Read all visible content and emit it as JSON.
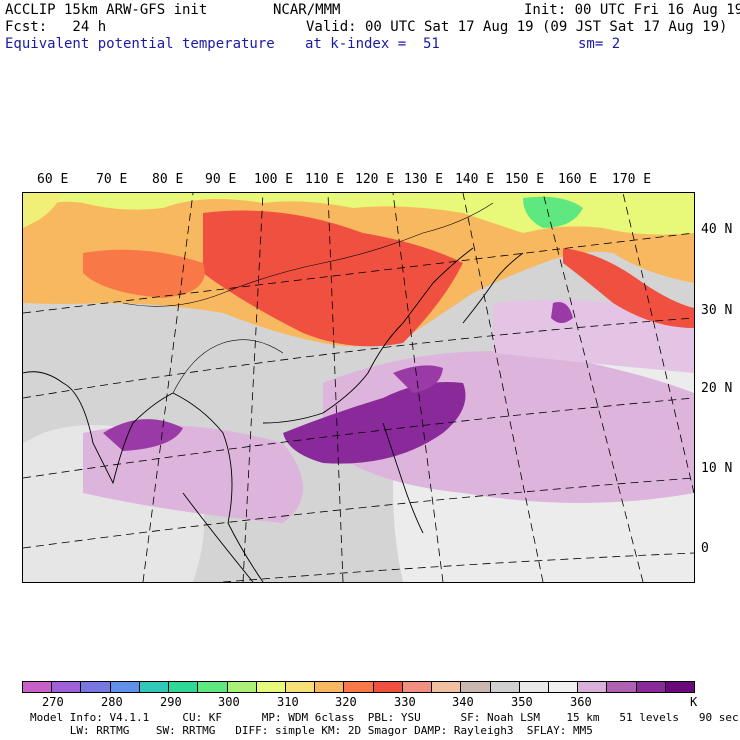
{
  "header": {
    "left_line1": "ACCLIP 15km ARW-GFS init",
    "left_line2": "Fcst:   24 h",
    "field": "Equivalent potential temperature",
    "center_org": "NCAR/MMM",
    "init": "Init: 00 UTC Fri 16 Aug 19",
    "valid": "Valid: 00 UTC Sat 17 Aug 19 (09 JST Sat 17 Aug 19)",
    "level": "at k-index =  51",
    "smooth": "sm= 2"
  },
  "map": {
    "lon_labels": [
      "60 E",
      "70 E",
      "80 E",
      "90 E",
      "100 E",
      "110 E",
      "120 E",
      "130 E",
      "140 E",
      "150 E",
      "160 E",
      "170 E"
    ],
    "lat_labels": [
      "40 N",
      "30 N",
      "20 N",
      "10 N",
      "0"
    ]
  },
  "colorbar": {
    "colors": [
      "#c860c8",
      "#a060d8",
      "#7878e0",
      "#6090e8",
      "#30c8b8",
      "#30d898",
      "#60e880",
      "#a8f078",
      "#e8f878",
      "#f8e078",
      "#f8b860",
      "#f87848",
      "#f05040",
      "#f09080",
      "#f0c0a0",
      "#c8b8b0",
      "#d0d0d0",
      "#e8e8e8",
      "#f0f0f0",
      "#d8b0d8",
      "#b060b0",
      "#8a2a9a",
      "#6a0a7a"
    ],
    "tick_labels": [
      "270",
      "280",
      "290",
      "300",
      "310",
      "320",
      "330",
      "340",
      "350",
      "360"
    ],
    "unit": "K"
  },
  "footer": {
    "line1": "Model Info: V4.1.1     CU: KF      MP: WDM 6class  PBL: YSU      SF: Noah LSM    15 km   51 levels   90 sec",
    "line2": "      LW: RRTMG    SW: RRTMG   DIFF: simple KM: 2D Smagor DAMP: Rayleigh3  SFLAY: MM5"
  }
}
